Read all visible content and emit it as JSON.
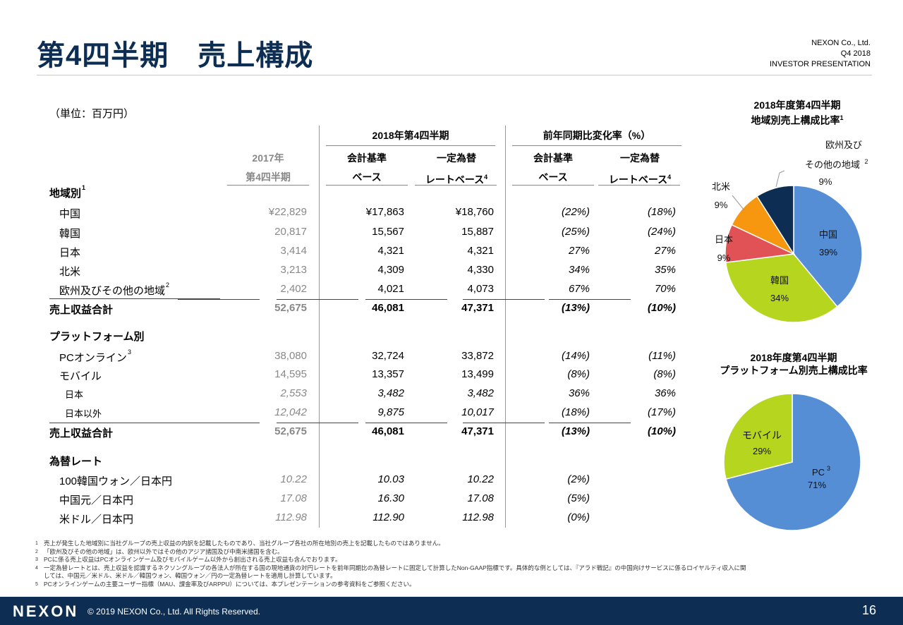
{
  "header": {
    "title": "第4四半期　売上構成",
    "company": "NEXON Co., Ltd.",
    "period": "Q4 2018",
    "doc": "INVESTOR PRESENTATION"
  },
  "unit": "（単位：百万円）",
  "table": {
    "group1": "2018年第4四半期",
    "group2": "前年同期比変化率（%）",
    "col1": [
      "2017年",
      "第4四半期"
    ],
    "col2": [
      "会計基準",
      "ベース"
    ],
    "col3": [
      "一定為替",
      "レートベース"
    ],
    "col3_sup": "4",
    "col4": [
      "会計基準",
      "ベース"
    ],
    "col5": [
      "一定為替",
      "レートベース"
    ],
    "col5_sup": "4",
    "rows": [
      {
        "label": "地域別",
        "sup": "1",
        "type": "section"
      },
      {
        "label": "中国",
        "v": [
          "¥22,829",
          "¥17,863",
          "¥18,760",
          "(22%)",
          "(18%)"
        ]
      },
      {
        "label": "韓国",
        "v": [
          "20,817",
          "15,567",
          "15,887",
          "(25%)",
          "(24%)"
        ]
      },
      {
        "label": "日本",
        "v": [
          "3,414",
          "4,321",
          "4,321",
          "27%",
          "27%"
        ]
      },
      {
        "label": "北米",
        "v": [
          "3,213",
          "4,309",
          "4,330",
          "34%",
          "35%"
        ]
      },
      {
        "label": "欧州及びその他の地域",
        "sup": "2",
        "v": [
          "2,402",
          "4,021",
          "4,073",
          "67%",
          "70%"
        ]
      },
      {
        "label": "売上収益合計",
        "type": "total",
        "v": [
          "52,675",
          "46,081",
          "47,371",
          "(13%)",
          "(10%)"
        ]
      },
      {
        "label": "プラットフォーム別",
        "type": "section",
        "gap": true
      },
      {
        "label": "PCオンライン",
        "sup": "3",
        "v": [
          "38,080",
          "32,724",
          "33,872",
          "(14%)",
          "(11%)"
        ]
      },
      {
        "label": "モバイル",
        "v": [
          "14,595",
          "13,357",
          "13,499",
          "(8%)",
          "(8%)"
        ]
      },
      {
        "label": "日本",
        "type": "sub",
        "v": [
          "2,553",
          "3,482",
          "3,482",
          "36%",
          "36%"
        ]
      },
      {
        "label": "日本以外",
        "type": "sub",
        "v": [
          "12,042",
          "9,875",
          "10,017",
          "(18%)",
          "(17%)"
        ]
      },
      {
        "label": "売上収益合計",
        "type": "total",
        "v": [
          "52,675",
          "46,081",
          "47,371",
          "(13%)",
          "(10%)"
        ]
      },
      {
        "label": "為替レート",
        "type": "section",
        "gap": true
      },
      {
        "label": "100韓国ウォン／日本円",
        "type": "fx",
        "v": [
          "10.22",
          "10.03",
          "10.22",
          "(2%)",
          ""
        ]
      },
      {
        "label": "中国元／日本円",
        "type": "fx",
        "v": [
          "17.08",
          "16.30",
          "17.08",
          "(5%)",
          ""
        ]
      },
      {
        "label": "米ドル／日本円",
        "type": "fx",
        "v": [
          "112.98",
          "112.90",
          "112.98",
          "(0%)",
          ""
        ]
      }
    ]
  },
  "chart_data": [
    {
      "type": "pie",
      "title": "2018年度第4四半期 地域別売上構成比率",
      "title_lines": [
        "2018年度第4四半期",
        "地域別売上構成比率"
      ],
      "title_sup": "1",
      "slices": [
        {
          "label": "中国",
          "value": 39,
          "color": "#558ed5"
        },
        {
          "label": "韓国",
          "value": 34,
          "color": "#b5d51e"
        },
        {
          "label": "日本",
          "value": 9,
          "color": "#e05255"
        },
        {
          "label": "北米",
          "value": 9,
          "color": "#f7960f"
        },
        {
          "label": "欧州及びその他の地域",
          "value": 9,
          "color": "#0d2d52"
        }
      ],
      "extra_labels": {
        "eu_line1": "欧州及び",
        "eu_line2": "その他の地域",
        "eu_sup": "2"
      }
    },
    {
      "type": "pie",
      "title": "2018年度第4四半期 プラットフォーム別売上構成比率",
      "title_lines": [
        "2018年度第4四半期",
        "プラットフォーム別売上構成比率"
      ],
      "slices": [
        {
          "label": "PC",
          "sup": "3",
          "value": 71,
          "color": "#558ed5"
        },
        {
          "label": "モバイル",
          "value": 29,
          "color": "#b5d51e"
        }
      ]
    }
  ],
  "footnotes": [
    [
      "1",
      "売上が発生した地域別に当社グループの売上収益の内訳を記載したものであり、当社グループ各社の所在地別の売上を記載したものではありません。"
    ],
    [
      "2",
      "「欧州及びその他の地域」は、欧州以外ではその他のアジア諸国及び中南米諸国を含む。"
    ],
    [
      "3",
      "PCに係る売上収益はPCオンラインゲーム及びモバイルゲーム以外から創出される売上収益も含んでおります。"
    ],
    [
      "4",
      "一定為替レートとは、売上収益を認識するネクソングループの各法人が所在する国の現地通貨の対円レートを前年同期比の為替レートに固定して計算したNon-GAAP指標です。具体的な例としては、『アラド戦記』の中国向けサービスに係るロイヤルティ収入に関"
    ],
    [
      "",
      "しては、中国元／米ドル、米ドル／韓国ウォン、韓国ウォン／円の一定為替レートを適用し計算しています。"
    ],
    [
      "5",
      "PCオンラインゲームの主要ユーザー指標（MAU、課金率及びARPPU）については、本プレゼンテーションの参考資料をご参照ください。"
    ]
  ],
  "footer": {
    "logo": "NEXON",
    "copyright": "© 2019 NEXON Co., Ltd. All Rights Reserved.",
    "page": "16"
  }
}
